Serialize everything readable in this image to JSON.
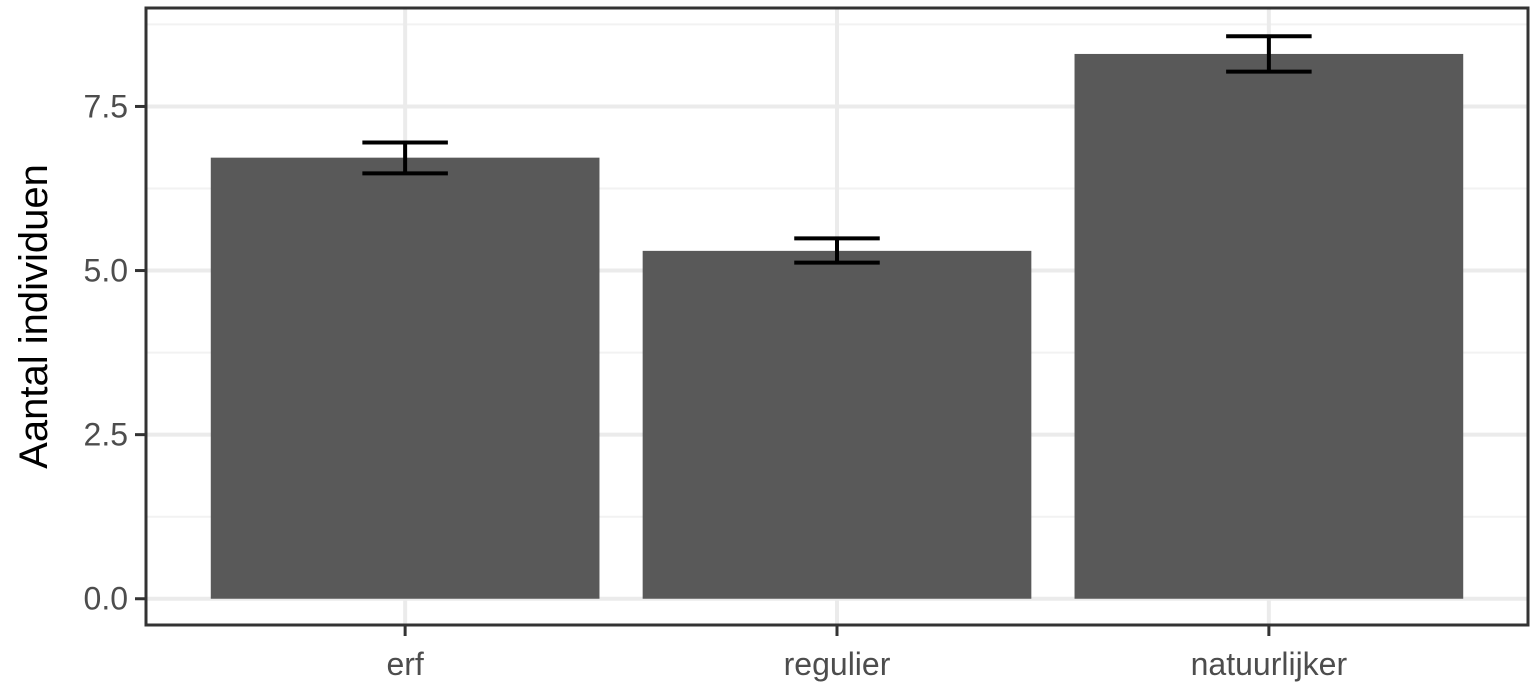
{
  "chart_data": {
    "type": "bar",
    "title": "",
    "xlabel": "",
    "ylabel": "Aantal individuen",
    "categories": [
      "erf",
      "regulier",
      "natuurlijker"
    ],
    "values": [
      6.72,
      5.3,
      8.3
    ],
    "error_bars": [
      {
        "low": 6.48,
        "high": 6.95
      },
      {
        "low": 5.12,
        "high": 5.49
      },
      {
        "low": 8.03,
        "high": 8.57
      }
    ],
    "ylim": [
      -0.4,
      9.0
    ],
    "yticks": [
      0.0,
      2.5,
      5.0,
      7.5
    ],
    "ytick_labels": [
      "0.0",
      "2.5",
      "5.0",
      "7.5"
    ],
    "grid": true,
    "colors": {
      "bar": "#595959",
      "error_bar": "#000000",
      "grid_major": "#ebebeb",
      "grid_minor": "#f2f2f2",
      "panel_border": "#333333"
    }
  }
}
